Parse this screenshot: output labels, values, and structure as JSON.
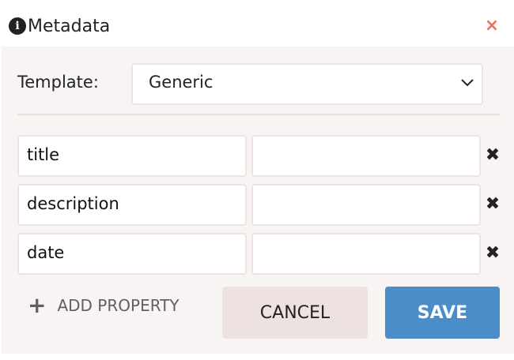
{
  "header": {
    "title": "Metadata",
    "info_icon": "info-circle-icon",
    "close_icon": "close-icon",
    "close_color": "#e8735c"
  },
  "template": {
    "label": "Template:",
    "selected": "Generic"
  },
  "properties": [
    {
      "key": "title",
      "value": ""
    },
    {
      "key": "description",
      "value": ""
    },
    {
      "key": "date",
      "value": ""
    }
  ],
  "actions": {
    "add_property": "ADD PROPERTY",
    "cancel": "CANCEL",
    "save": "SAVE",
    "save_color": "#4a8ec9"
  },
  "glyphs": {
    "info": "i",
    "close": "×",
    "delete": "✖",
    "plus": "+"
  }
}
